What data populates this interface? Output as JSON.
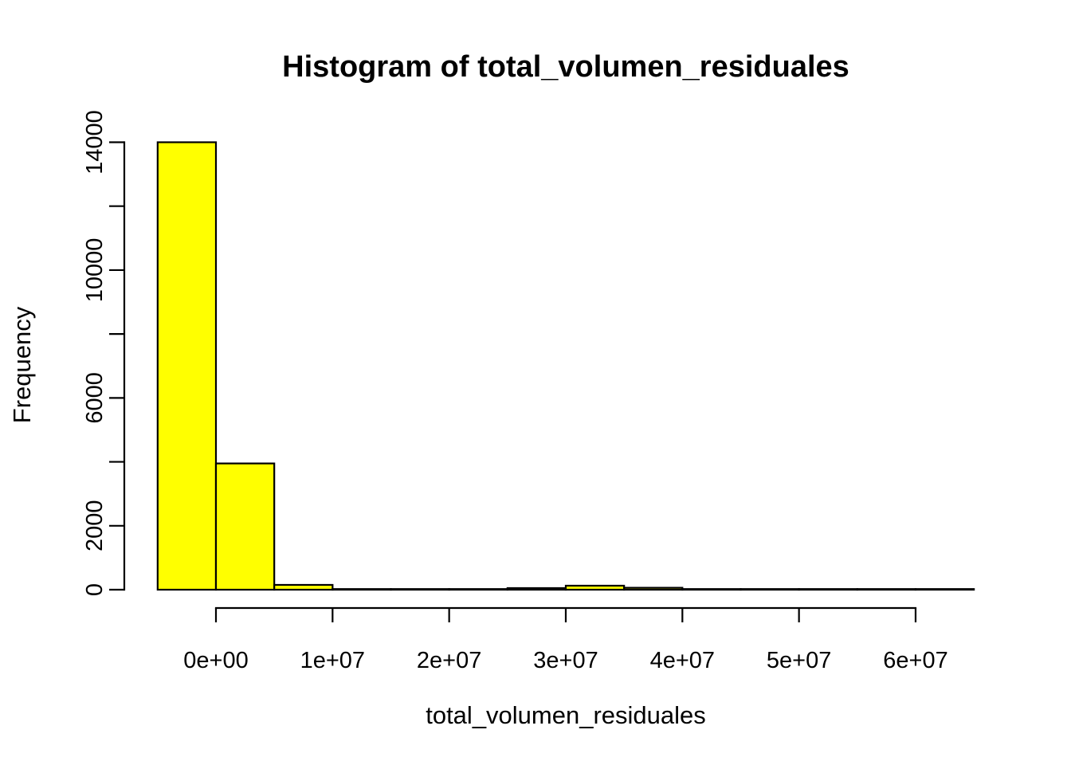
{
  "figure": {
    "background_color": "#FFFFFF"
  },
  "chart_data": {
    "type": "histogram",
    "title": "Histogram of total_volumen_residuales",
    "xlabel": "total_volumen_residuales",
    "ylabel": "Frequency",
    "bar_fill_color": "#FFFF00",
    "bar_border_color": "#000000",
    "axis_color": "#000000",
    "grid": false,
    "legend": false,
    "bin_width": 5000000,
    "breaks": [
      -5000000,
      0,
      5000000,
      10000000,
      15000000,
      20000000,
      25000000,
      30000000,
      35000000,
      40000000,
      45000000,
      50000000,
      55000000,
      60000000,
      65000000
    ],
    "counts": [
      14000,
      3950,
      150,
      20,
      10,
      10,
      50,
      125,
      60,
      10,
      5,
      3,
      2,
      1
    ],
    "xlim": [
      -5000000,
      65000000
    ],
    "ylim": [
      0,
      14000
    ],
    "x_axis": {
      "ticks": [
        {
          "value": 0,
          "label": "0e+00"
        },
        {
          "value": 10000000,
          "label": "1e+07"
        },
        {
          "value": 20000000,
          "label": "2e+07"
        },
        {
          "value": 30000000,
          "label": "3e+07"
        },
        {
          "value": 40000000,
          "label": "4e+07"
        },
        {
          "value": 50000000,
          "label": "5e+07"
        },
        {
          "value": 60000000,
          "label": "6e+07"
        }
      ]
    },
    "y_axis": {
      "range": [
        0,
        14000
      ],
      "ticks": [
        {
          "value": 0,
          "label": "0"
        },
        {
          "value": 2000,
          "label": "2000"
        },
        {
          "value": 4000,
          "label": ""
        },
        {
          "value": 6000,
          "label": "6000"
        },
        {
          "value": 8000,
          "label": ""
        },
        {
          "value": 10000,
          "label": "10000"
        },
        {
          "value": 12000,
          "label": ""
        },
        {
          "value": 14000,
          "label": "14000"
        }
      ]
    }
  }
}
